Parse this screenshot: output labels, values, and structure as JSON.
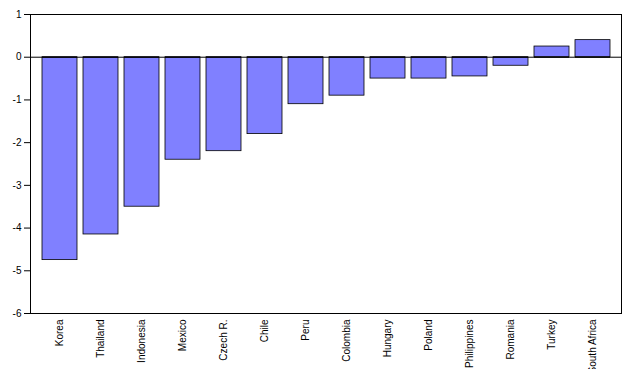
{
  "chart_data": {
    "type": "bar",
    "categories": [
      "Korea",
      "Thailand",
      "Indonesia",
      "Mexico",
      "Czech R.",
      "Chile",
      "Peru",
      "Colombia",
      "Hungary",
      "Poland",
      "Philippines",
      "Romania",
      "Turkey",
      "South Africa"
    ],
    "values": [
      -4.75,
      -4.15,
      -3.5,
      -2.4,
      -2.2,
      -1.8,
      -1.1,
      -0.9,
      -0.5,
      -0.5,
      -0.45,
      -0.2,
      0.25,
      0.4
    ],
    "color": "#8080ff",
    "ylim": [
      -6,
      1
    ],
    "yticks": [
      -6,
      -5,
      -4,
      -3,
      -2,
      -1,
      0,
      1
    ],
    "grid": false
  }
}
